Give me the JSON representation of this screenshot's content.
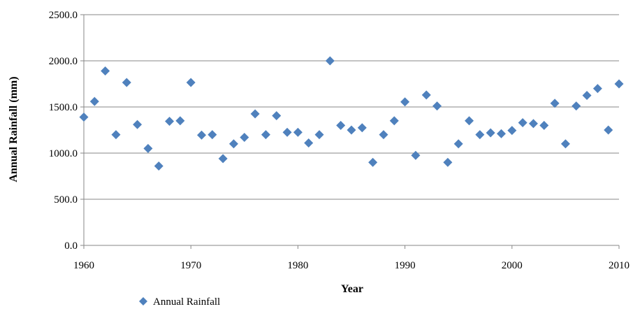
{
  "chart_data": {
    "type": "scatter",
    "title": "",
    "xlabel": "Year",
    "ylabel": "Annual Rainfall (mm)",
    "xlim": [
      1960,
      2010
    ],
    "ylim": [
      0,
      2500
    ],
    "xticks": [
      1960,
      1970,
      1980,
      1990,
      2000,
      2010
    ],
    "xtick_labels": [
      "1960",
      "1970",
      "1980",
      "1990",
      "2000",
      "2010"
    ],
    "yticks": [
      0,
      500,
      1000,
      1500,
      2000,
      2500
    ],
    "ytick_labels": [
      "0.0",
      "500.0",
      "1000.0",
      "1500.0",
      "2000.0",
      "2500.0"
    ],
    "grid": "horizontal",
    "legend": "bottom-left",
    "series": [
      {
        "name": "Annual Rainfall",
        "color": "#4F81BD",
        "marker": "diamond",
        "x": [
          1960,
          1961,
          1962,
          1963,
          1964,
          1965,
          1966,
          1967,
          1968,
          1969,
          1970,
          1971,
          1972,
          1973,
          1974,
          1975,
          1976,
          1977,
          1978,
          1979,
          1980,
          1981,
          1982,
          1983,
          1984,
          1985,
          1986,
          1987,
          1988,
          1989,
          1990,
          1991,
          1992,
          1993,
          1994,
          1995,
          1996,
          1997,
          1998,
          1999,
          2000,
          2001,
          2002,
          2003,
          2004,
          2005,
          2006,
          2007,
          2008,
          2009,
          2010
        ],
        "y": [
          1390,
          1560,
          1890,
          1200,
          1765,
          1310,
          1050,
          860,
          1345,
          1350,
          1765,
          1195,
          1200,
          940,
          1100,
          1170,
          1425,
          1200,
          1405,
          1225,
          1225,
          1110,
          1200,
          2000,
          1300,
          1250,
          1275,
          900,
          1200,
          1350,
          1555,
          975,
          1630,
          1510,
          900,
          1100,
          1350,
          1200,
          1220,
          1210,
          1245,
          1330,
          1320,
          1300,
          1540,
          1100,
          1510,
          1625,
          1700,
          1250,
          1750
        ]
      }
    ]
  }
}
